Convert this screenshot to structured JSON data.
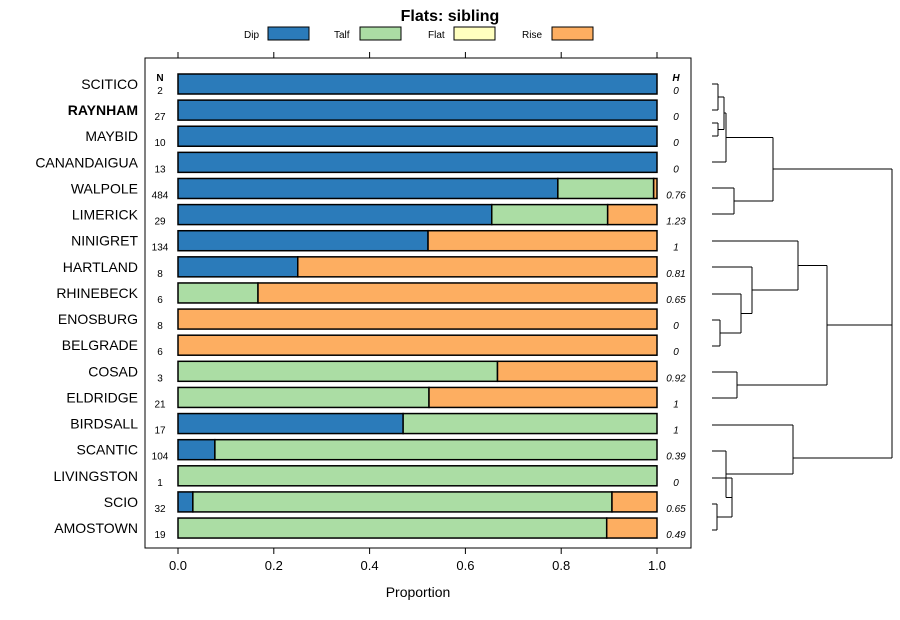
{
  "chart_data": {
    "type": "bar",
    "orientation": "horizontal",
    "stacked": true,
    "title": "Flats: sibling",
    "xlabel": "Proportion",
    "xlim": [
      0,
      1
    ],
    "xticks": [
      "0.0",
      "0.2",
      "0.4",
      "0.6",
      "0.8",
      "1.0"
    ],
    "n_header": "N",
    "h_header": "H",
    "legend": [
      {
        "name": "Dip",
        "color": "#2b7bba"
      },
      {
        "name": "Talf",
        "color": "#abdda4"
      },
      {
        "name": "Flat",
        "color": "#ffffbf"
      },
      {
        "name": "Rise",
        "color": "#fdae61"
      }
    ],
    "categories": [
      "SCITICO",
      "RAYNHAM",
      "MAYBID",
      "CANANDAIGUA",
      "WALPOLE",
      "LIMERICK",
      "NINIGRET",
      "HARTLAND",
      "RHINEBECK",
      "ENOSBURG",
      "BELGRADE",
      "COSAD",
      "ELDRIDGE",
      "BIRDSALL",
      "SCANTIC",
      "LIVINGSTON",
      "SCIO",
      "AMOSTOWN"
    ],
    "bold_category": "RAYNHAM",
    "n": [
      "2",
      "27",
      "10",
      "13",
      "484",
      "29",
      "134",
      "8",
      "6",
      "8",
      "6",
      "3",
      "21",
      "17",
      "104",
      "1",
      "32",
      "19"
    ],
    "h": [
      "0",
      "0",
      "0",
      "0",
      "0.76",
      "1.23",
      "1",
      "0.81",
      "0.65",
      "0",
      "0",
      "0.92",
      "1",
      "1",
      "0.39",
      "0",
      "0.65",
      "0.49"
    ],
    "series": [
      {
        "name": "Dip",
        "values": [
          1,
          1,
          1,
          1,
          0.793,
          0.655,
          0.522,
          0.25,
          0,
          0,
          0,
          0,
          0,
          0.47,
          0.077,
          0,
          0.031,
          0
        ]
      },
      {
        "name": "Talf",
        "values": [
          0,
          0,
          0,
          0,
          0.2,
          0.242,
          0,
          0,
          0.167,
          0,
          0,
          0.667,
          0.524,
          0.53,
          0.923,
          1,
          0.875,
          0.895
        ]
      },
      {
        "name": "Flat",
        "values": [
          0,
          0,
          0,
          0,
          0,
          0,
          0,
          0,
          0,
          0,
          0,
          0,
          0,
          0,
          0,
          0,
          0,
          0
        ]
      },
      {
        "name": "Rise",
        "values": [
          0,
          0,
          0,
          0,
          0.007,
          0.103,
          0.478,
          0.75,
          0.833,
          1,
          1,
          0.333,
          0.476,
          0,
          0,
          0,
          0.094,
          0.105
        ]
      }
    ]
  }
}
